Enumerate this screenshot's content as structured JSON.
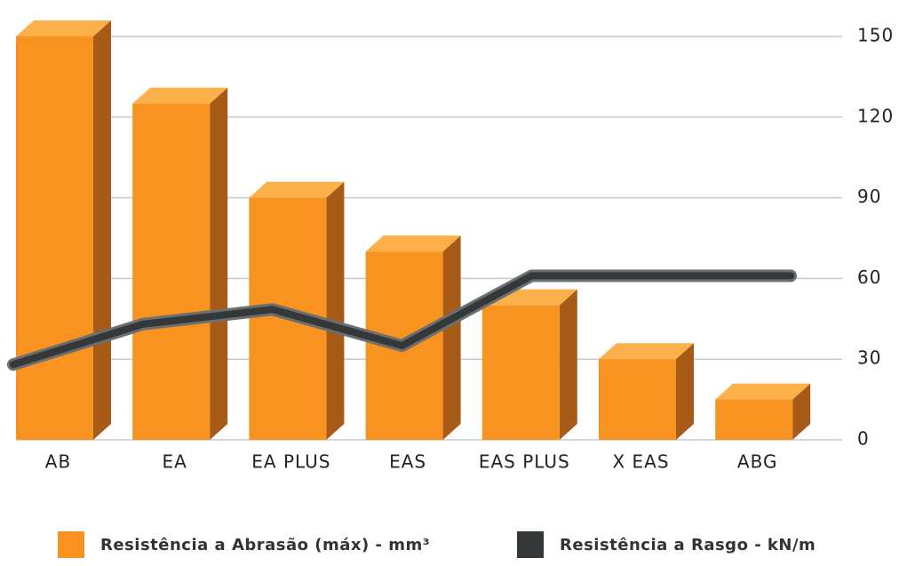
{
  "chart_data": {
    "type": "combo",
    "categories": [
      "AB",
      "EA",
      "EA PLUS",
      "EAS",
      "EAS PLUS",
      "X EAS",
      "ABG"
    ],
    "series": [
      {
        "name": "Resistência a Abrasão (máx) - mm³",
        "type": "bar",
        "color": "#f7931e",
        "values": [
          150,
          125,
          90,
          70,
          50,
          30,
          15
        ]
      },
      {
        "name": "Resistência a Rasgo - kN/m",
        "type": "line",
        "color": "#353839",
        "values": [
          28,
          43,
          48.5,
          35,
          61,
          61,
          61
        ]
      }
    ],
    "ylim": [
      0,
      150
    ],
    "yticks": [
      0,
      30,
      60,
      90,
      120,
      150
    ],
    "grid": true
  }
}
